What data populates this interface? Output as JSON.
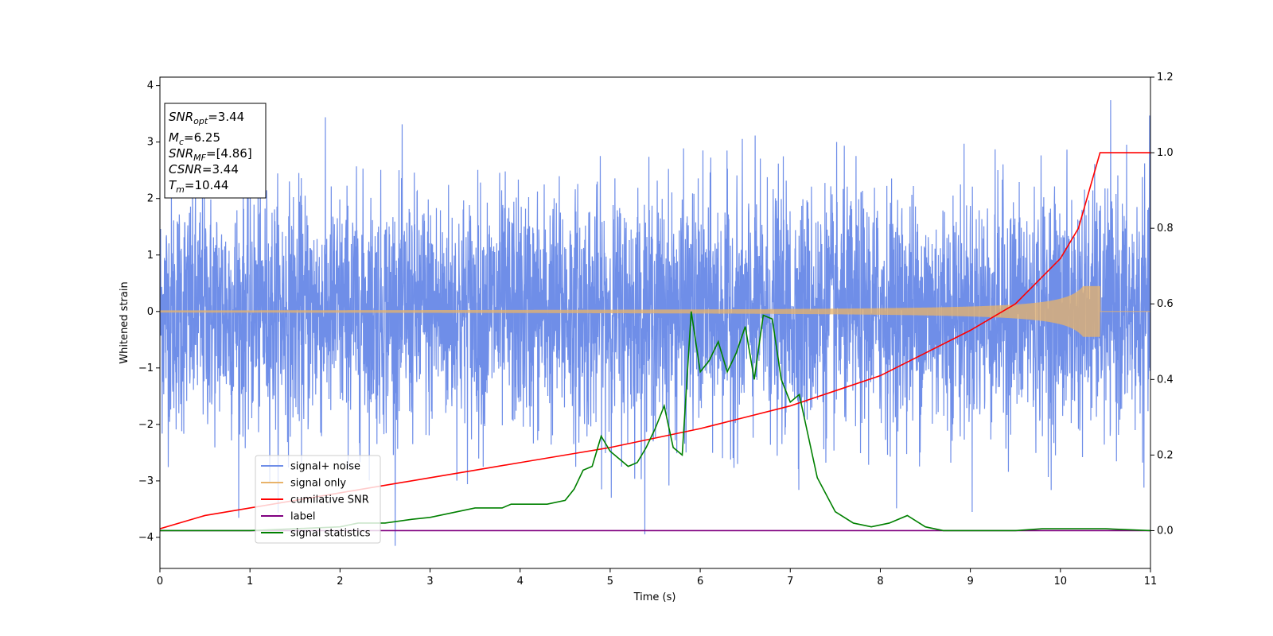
{
  "chart_data": {
    "type": "line",
    "xlabel": "Time (s)",
    "ylabel": "Whitened strain",
    "xlim": [
      0,
      11
    ],
    "ylim": [
      -4.55,
      4.15
    ],
    "y2lim": [
      -0.1,
      1.2
    ],
    "xticks": [
      "0",
      "1",
      "2",
      "3",
      "4",
      "5",
      "6",
      "7",
      "8",
      "9",
      "10",
      "11"
    ],
    "yticks": [
      "4",
      "3",
      "2",
      "1",
      "0",
      "−1",
      "−2",
      "−3",
      "−4"
    ],
    "y2ticks": [
      "0.0",
      "0.2",
      "0.4",
      "0.6",
      "0.8",
      "1.0",
      "1.2"
    ],
    "grid": false,
    "legend_position": "lower-left",
    "legend": [
      "signal+ noise",
      "signal only",
      "cumilative SNR",
      "label",
      "signal statistics"
    ],
    "info_box": [
      "SNRopt=3.44",
      "Mc=6.25",
      "SNRMF=[4.86]",
      "CSNR=3.44",
      "Tm=10.44"
    ],
    "info_box_parts": [
      {
        "base": "SNR",
        "sub": "opt",
        "rest": "=3.44"
      },
      {
        "base": "M",
        "sub": "c",
        "rest": "=6.25"
      },
      {
        "base": "SNR",
        "sub": "MF",
        "rest": "=[4.86]"
      },
      {
        "base": "CSNR",
        "sub": "",
        "rest": "=3.44"
      },
      {
        "base": "T",
        "sub": "m",
        "rest": "=10.44"
      }
    ],
    "colors": {
      "signal_noise": "#6f8ee8",
      "signal_only": "#e8b36a",
      "cumulative_snr": "#ff0000",
      "label": "#800080",
      "signal_statistics": "#008000"
    },
    "series": [
      {
        "name": "signal+ noise",
        "axis": "left",
        "description_stats": {
          "x_range": [
            0,
            11
          ],
          "typical_range": [
            -2.2,
            2.4
          ],
          "max": 3.78,
          "min": -4.15
        }
      },
      {
        "name": "signal only",
        "axis": "left",
        "chirp": {
          "t_merge": 10.44,
          "final_amplitude": 0.45
        }
      },
      {
        "name": "cumilative SNR",
        "axis": "right",
        "x": [
          0,
          0.5,
          1,
          1.5,
          2,
          2.5,
          3,
          3.5,
          4,
          4.5,
          5,
          5.5,
          6,
          6.5,
          7,
          7.5,
          8,
          8.5,
          9,
          9.5,
          10,
          10.2,
          10.44,
          11
        ],
        "y": [
          0.005,
          0.04,
          0.06,
          0.08,
          0.1,
          0.12,
          0.14,
          0.16,
          0.18,
          0.2,
          0.22,
          0.245,
          0.27,
          0.3,
          0.33,
          0.37,
          0.41,
          0.47,
          0.53,
          0.6,
          0.72,
          0.8,
          1.0,
          1.0
        ]
      },
      {
        "name": "label",
        "axis": "right",
        "x": [
          0,
          11
        ],
        "y": [
          0,
          0
        ]
      },
      {
        "name": "signal statistics",
        "axis": "right",
        "x": [
          0,
          0.5,
          1,
          1.5,
          2,
          2.2,
          2.5,
          2.8,
          3,
          3.3,
          3.5,
          3.8,
          3.9,
          4.1,
          4.3,
          4.5,
          4.6,
          4.7,
          4.8,
          4.9,
          5.0,
          5.1,
          5.2,
          5.3,
          5.4,
          5.5,
          5.6,
          5.7,
          5.8,
          5.9,
          6.0,
          6.1,
          6.2,
          6.3,
          6.4,
          6.5,
          6.6,
          6.7,
          6.8,
          6.9,
          7.0,
          7.1,
          7.2,
          7.3,
          7.5,
          7.7,
          7.9,
          8.1,
          8.3,
          8.5,
          8.7,
          9,
          9.5,
          9.8,
          10,
          10.5,
          11
        ],
        "y": [
          0.0,
          0.0,
          0.0,
          0.005,
          0.01,
          0.02,
          0.02,
          0.03,
          0.035,
          0.05,
          0.06,
          0.06,
          0.07,
          0.07,
          0.07,
          0.08,
          0.11,
          0.16,
          0.17,
          0.25,
          0.21,
          0.19,
          0.17,
          0.18,
          0.22,
          0.27,
          0.33,
          0.22,
          0.2,
          0.58,
          0.42,
          0.45,
          0.5,
          0.42,
          0.47,
          0.54,
          0.4,
          0.57,
          0.56,
          0.4,
          0.34,
          0.36,
          0.25,
          0.14,
          0.05,
          0.02,
          0.01,
          0.02,
          0.04,
          0.01,
          0.0,
          0.0,
          0.0,
          0.005,
          0.005,
          0.005,
          0.0
        ]
      }
    ]
  }
}
